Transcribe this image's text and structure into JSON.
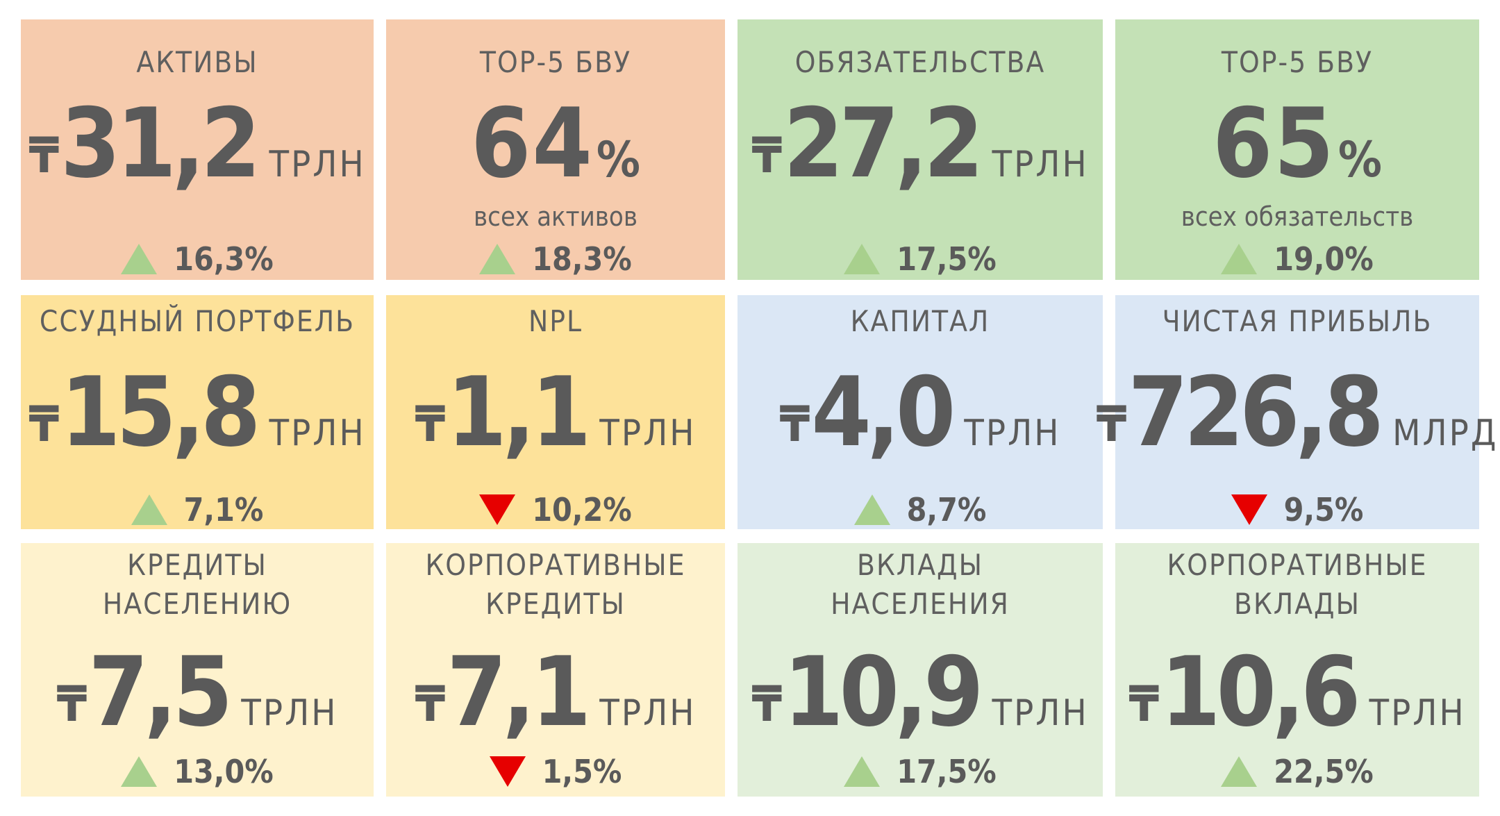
{
  "colors": {
    "peach": "#f6cbad",
    "green": "#c4e1b6",
    "yellow": "#fde29a",
    "blue": "#dbe7f5",
    "light_yellow": "#fef2cd",
    "light_green": "#e2efda",
    "up_arrow": "#a8d08d",
    "down_arrow": "#e60000"
  },
  "currency_symbol": "₸",
  "cards": {
    "assets": {
      "title": "АКТИВЫ",
      "value": "31,2",
      "unit": "ТРЛН",
      "change": "16,3%",
      "direction": "up"
    },
    "top5_assets": {
      "title": "ТОР-5 БВУ",
      "value": "64",
      "unit": "%",
      "sub": "всех активов",
      "change": "18,3%",
      "direction": "up"
    },
    "liabilities": {
      "title": "ОБЯЗАТЕЛЬСТВА",
      "value": "27,2",
      "unit": "ТРЛН",
      "change": "17,5%",
      "direction": "up"
    },
    "top5_liabilities": {
      "title": "ТОР-5 БВУ",
      "value": "65",
      "unit": "%",
      "sub": "всех обязательств",
      "change": "19,0%",
      "direction": "up"
    },
    "loan_portfolio": {
      "title": "ССУДНЫЙ ПОРТФЕЛЬ",
      "value": "15,8",
      "unit": "ТРЛН",
      "change": "7,1%",
      "direction": "up"
    },
    "npl": {
      "title": "NPL",
      "value": "1,1",
      "unit": "ТРЛН",
      "change": "10,2%",
      "direction": "down"
    },
    "capital": {
      "title": "КАПИТАЛ",
      "value": "4,0",
      "unit": "ТРЛН",
      "change": "8,7%",
      "direction": "up"
    },
    "net_profit": {
      "title": "ЧИСТАЯ ПРИБЫЛЬ",
      "value": "726,8",
      "unit": "МЛРД",
      "change": "9,5%",
      "direction": "down"
    },
    "retail_loans": {
      "title_line1": "КРЕДИТЫ",
      "title_line2": "НАСЕЛЕНИЮ",
      "value": "7,5",
      "unit": "ТРЛН",
      "change": "13,0%",
      "direction": "up"
    },
    "corporate_loans": {
      "title_line1": "КОРПОРАТИВНЫЕ",
      "title_line2": "КРЕДИТЫ",
      "value": "7,1",
      "unit": "ТРЛН",
      "change": "1,5%",
      "direction": "down"
    },
    "retail_deposits": {
      "title_line1": "ВКЛАДЫ",
      "title_line2": "НАСЕЛЕНИЯ",
      "value": "10,9",
      "unit": "ТРЛН",
      "change": "17,5%",
      "direction": "up"
    },
    "corporate_deposits": {
      "title_line1": "КОРПОРАТИВНЫЕ",
      "title_line2": "ВКЛАДЫ",
      "value": "10,6",
      "unit": "ТРЛН",
      "change": "22,5%",
      "direction": "up"
    }
  }
}
